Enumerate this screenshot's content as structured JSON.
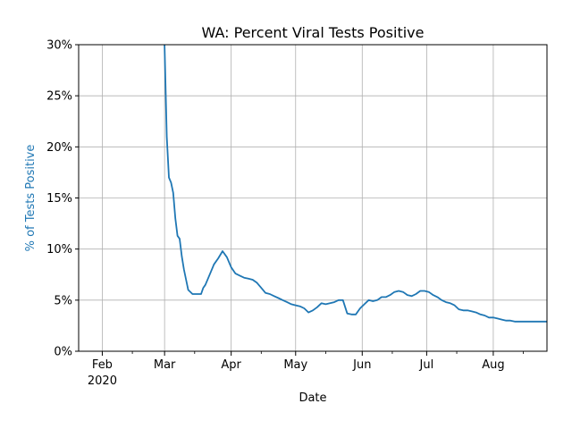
{
  "chart_data": {
    "type": "line",
    "title": "WA: Percent Viral Tests Positive",
    "xlabel": "Date",
    "ylabel": "% of Tests Positive",
    "ylabel_color": "#1f77b4",
    "line_color": "#1f77b4",
    "grid": true,
    "xlim": [
      "2020-01-21",
      "2020-08-26"
    ],
    "ylim": [
      0,
      30
    ],
    "x_ticks": [
      {
        "date": "2020-02-01",
        "label": "Feb",
        "sublabel": "2020"
      },
      {
        "date": "2020-03-01",
        "label": "Mar",
        "sublabel": ""
      },
      {
        "date": "2020-04-01",
        "label": "Apr",
        "sublabel": ""
      },
      {
        "date": "2020-05-01",
        "label": "May",
        "sublabel": ""
      },
      {
        "date": "2020-06-01",
        "label": "Jun",
        "sublabel": ""
      },
      {
        "date": "2020-07-01",
        "label": "Jul",
        "sublabel": ""
      },
      {
        "date": "2020-08-01",
        "label": "Aug",
        "sublabel": ""
      }
    ],
    "x_minor_ticks": [
      "2020-02-15",
      "2020-03-15",
      "2020-04-15",
      "2020-05-15",
      "2020-06-15",
      "2020-07-15",
      "2020-08-15"
    ],
    "y_ticks": [
      {
        "value": 0,
        "label": "0%"
      },
      {
        "value": 5,
        "label": "5%"
      },
      {
        "value": 10,
        "label": "10%"
      },
      {
        "value": 15,
        "label": "15%"
      },
      {
        "value": 20,
        "label": "20%"
      },
      {
        "value": 25,
        "label": "25%"
      },
      {
        "value": 30,
        "label": "30%"
      }
    ],
    "series": [
      {
        "x": [
          "2020-03-01",
          "2020-03-02",
          "2020-03-03",
          "2020-03-04",
          "2020-03-05",
          "2020-03-06",
          "2020-03-07",
          "2020-03-08",
          "2020-03-09",
          "2020-03-10",
          "2020-03-11",
          "2020-03-12",
          "2020-03-14",
          "2020-03-16",
          "2020-03-18",
          "2020-03-19",
          "2020-03-20",
          "2020-03-22",
          "2020-03-24",
          "2020-03-26",
          "2020-03-28",
          "2020-03-30",
          "2020-04-01",
          "2020-04-03",
          "2020-04-05",
          "2020-04-07",
          "2020-04-09",
          "2020-04-11",
          "2020-04-13",
          "2020-04-15",
          "2020-04-17",
          "2020-04-19",
          "2020-04-21",
          "2020-04-23",
          "2020-04-25",
          "2020-04-27",
          "2020-04-29",
          "2020-05-01",
          "2020-05-03",
          "2020-05-05",
          "2020-05-07",
          "2020-05-09",
          "2020-05-11",
          "2020-05-13",
          "2020-05-15",
          "2020-05-17",
          "2020-05-19",
          "2020-05-21",
          "2020-05-23",
          "2020-05-25",
          "2020-05-27",
          "2020-05-29",
          "2020-05-31",
          "2020-06-02",
          "2020-06-04",
          "2020-06-06",
          "2020-06-08",
          "2020-06-10",
          "2020-06-12",
          "2020-06-14",
          "2020-06-16",
          "2020-06-18",
          "2020-06-20",
          "2020-06-22",
          "2020-06-24",
          "2020-06-26",
          "2020-06-28",
          "2020-06-30",
          "2020-07-02",
          "2020-07-04",
          "2020-07-06",
          "2020-07-08",
          "2020-07-10",
          "2020-07-12",
          "2020-07-14",
          "2020-07-16",
          "2020-07-18",
          "2020-07-20",
          "2020-07-22",
          "2020-07-24",
          "2020-07-26",
          "2020-07-28",
          "2020-07-30",
          "2020-08-01",
          "2020-08-03",
          "2020-08-05",
          "2020-08-07",
          "2020-08-09",
          "2020-08-11",
          "2020-08-13",
          "2020-08-15",
          "2020-08-17",
          "2020-08-19",
          "2020-08-21",
          "2020-08-23",
          "2020-08-25",
          "2020-08-26"
        ],
        "values": [
          30,
          21,
          17,
          16.5,
          15.5,
          13,
          11.3,
          11,
          9.3,
          8,
          7,
          6,
          5.6,
          5.6,
          5.6,
          6.2,
          6.5,
          7.5,
          8.5,
          9.1,
          9.8,
          9.2,
          8.2,
          7.6,
          7.4,
          7.2,
          7.1,
          7.0,
          6.7,
          6.2,
          5.7,
          5.6,
          5.4,
          5.2,
          5.0,
          4.8,
          4.6,
          4.5,
          4.4,
          4.2,
          3.8,
          4.0,
          4.3,
          4.7,
          4.6,
          4.7,
          4.8,
          5.0,
          5.0,
          3.7,
          3.6,
          3.6,
          4.2,
          4.6,
          5.0,
          4.9,
          5.0,
          5.3,
          5.3,
          5.5,
          5.8,
          5.9,
          5.8,
          5.5,
          5.4,
          5.6,
          5.9,
          5.9,
          5.8,
          5.5,
          5.3,
          5.0,
          4.8,
          4.7,
          4.5,
          4.1,
          4.0,
          4.0,
          3.9,
          3.8,
          3.6,
          3.5,
          3.3,
          3.3,
          3.2,
          3.1,
          3.0,
          3.0,
          2.9,
          2.9,
          2.9,
          2.9,
          2.9,
          2.9,
          2.9,
          2.9,
          2.9
        ]
      }
    ]
  }
}
